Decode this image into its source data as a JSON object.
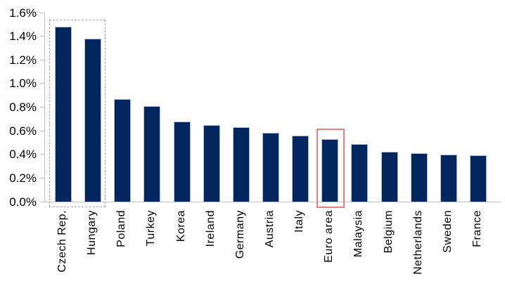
{
  "chart_data": {
    "type": "bar",
    "title": "",
    "xlabel": "",
    "ylabel": "",
    "unit": "%",
    "categories": [
      "Czech Rep.",
      "Hungary",
      "Poland",
      "Turkey",
      "Korea",
      "Ireland",
      "Germany",
      "Austria",
      "Italy",
      "Euro area",
      "Malaysia",
      "Belgium",
      "Netherlands",
      "Sweden",
      "France"
    ],
    "values": [
      1.48,
      1.38,
      0.87,
      0.81,
      0.68,
      0.65,
      0.63,
      0.58,
      0.56,
      0.53,
      0.49,
      0.42,
      0.41,
      0.4,
      0.39
    ],
    "ylim": [
      0,
      1.6
    ],
    "ytick_step": 0.2,
    "ytick_labels_top_to_bottom": [
      "1.6%",
      "1.4%",
      "1.2%",
      "1.0%",
      "0.8%",
      "0.6%",
      "0.4%",
      "0.2%",
      "0.0%"
    ],
    "grid": false,
    "legend": false,
    "colors": {
      "bar_fill": "#03265e",
      "bar_border": "#aebdd6",
      "axis": "#bfbfbf",
      "dashed_highlight": "#a6a6a6",
      "solid_highlight": "#e8817c",
      "text": "#000000",
      "background": "#ffffff"
    },
    "annotations": [
      {
        "kind": "dashed-box",
        "name": "czech-hungary-highlight",
        "first_category": "Czech Rep.",
        "last_category": "Hungary",
        "color": "#a6a6a6"
      },
      {
        "kind": "solid-box",
        "name": "euro-area-highlight",
        "first_category": "Euro area",
        "last_category": "Euro area",
        "color": "#e8817c"
      }
    ]
  }
}
